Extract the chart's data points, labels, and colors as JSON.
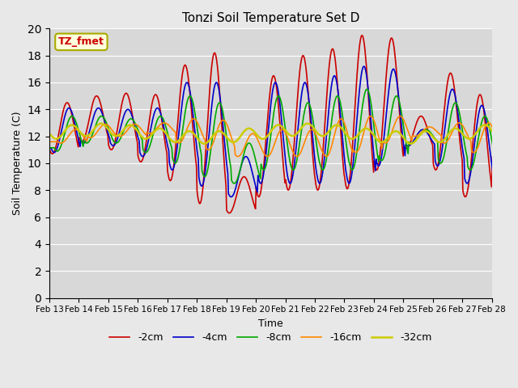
{
  "title": "Tonzi Soil Temperature Set D",
  "xlabel": "Time",
  "ylabel": "Soil Temperature (C)",
  "ylim": [
    0,
    20
  ],
  "yticks": [
    0,
    2,
    4,
    6,
    8,
    10,
    12,
    14,
    16,
    18,
    20
  ],
  "fig_bg": "#e8e8e8",
  "ax_bg": "#d8d8d8",
  "annotation_text": "TZ_fmet",
  "annotation_color": "#cc0000",
  "annotation_bg": "#ffffdd",
  "annotation_border": "#aaaa00",
  "series_colors": {
    "-2cm": "#cc0000",
    "-4cm": "#0000cc",
    "-8cm": "#00aa00",
    "-16cm": "#ff8800",
    "-32cm": "#cccc00"
  },
  "series_lw": {
    "-2cm": 1.2,
    "-4cm": 1.2,
    "-8cm": 1.2,
    "-16cm": 1.2,
    "-32cm": 1.8
  },
  "legend_order": [
    "-2cm",
    "-4cm",
    "-8cm",
    "-16cm",
    "-32cm"
  ],
  "tick_labels": [
    "Feb 13",
    "Feb 14",
    "Feb 15",
    "Feb 16",
    "Feb 17",
    "Feb 18",
    "Feb 19",
    "Feb 20",
    "Feb 21",
    "Feb 22",
    "Feb 23",
    "Feb 24",
    "Feb 25",
    "Feb 26",
    "Feb 27",
    "Feb 28"
  ],
  "day_peaks_2cm": [
    14.5,
    15.0,
    15.2,
    15.1,
    17.3,
    18.2,
    9.0,
    16.5,
    18.0,
    18.5,
    19.5,
    19.3,
    13.5,
    16.7,
    15.1,
    10.5
  ],
  "day_troughs_2cm": [
    10.7,
    11.6,
    11.0,
    10.1,
    8.7,
    7.0,
    6.3,
    7.5,
    8.0,
    8.0,
    8.1,
    9.5,
    11.1,
    9.5,
    7.5,
    10.5
  ],
  "day_peaks_4cm": [
    14.1,
    14.1,
    14.0,
    14.1,
    16.0,
    16.0,
    10.5,
    16.0,
    16.0,
    16.5,
    17.2,
    17.0,
    12.5,
    15.5,
    14.3,
    11.0
  ],
  "day_troughs_4cm": [
    10.8,
    11.5,
    11.3,
    10.5,
    9.5,
    8.3,
    7.5,
    8.5,
    8.5,
    8.5,
    8.5,
    9.8,
    11.3,
    9.8,
    8.5,
    10.5
  ],
  "day_peaks_8cm": [
    13.5,
    13.5,
    13.3,
    13.5,
    15.0,
    14.5,
    11.5,
    15.0,
    14.5,
    15.0,
    15.5,
    15.0,
    12.5,
    14.5,
    13.5,
    12.0
  ],
  "day_troughs_8cm": [
    10.9,
    11.5,
    11.5,
    10.8,
    10.0,
    9.0,
    8.5,
    9.5,
    9.5,
    9.5,
    9.5,
    10.2,
    11.5,
    10.0,
    9.5,
    11.0
  ],
  "day_peaks_16cm": [
    12.5,
    12.9,
    12.9,
    13.0,
    13.3,
    13.2,
    12.2,
    12.5,
    12.5,
    13.3,
    13.5,
    13.5,
    12.7,
    13.0,
    13.0,
    12.8
  ],
  "day_troughs_16cm": [
    11.5,
    11.9,
    12.0,
    12.2,
    11.5,
    11.0,
    10.5,
    10.5,
    10.5,
    10.5,
    10.8,
    11.5,
    12.0,
    11.5,
    10.8,
    12.0
  ],
  "base_32cm": 12.2,
  "amp_32cm": 0.45,
  "lag_32cm": 0.5
}
